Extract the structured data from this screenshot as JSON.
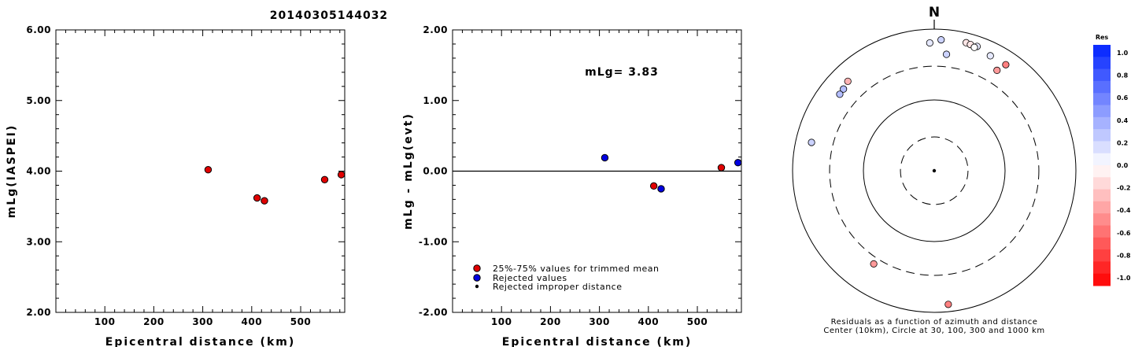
{
  "header": {
    "title": "20140305144032"
  },
  "chart_data": [
    {
      "type": "scatter",
      "title": "",
      "xlabel": "Epicentral distance (km)",
      "ylabel": "mLg(IASPEI)",
      "xlim": [
        0,
        590
      ],
      "ylim": [
        2.0,
        6.0
      ],
      "xticks": [
        100,
        200,
        300,
        400,
        500
      ],
      "xtick_labels": [
        "100",
        "200",
        "300",
        "400",
        "500"
      ],
      "yticks": [
        2.0,
        3.0,
        4.0,
        5.0,
        6.0
      ],
      "ytick_labels": [
        "2.00",
        "3.00",
        "4.00",
        "5.00",
        "6.00"
      ],
      "series": [
        {
          "color": "#e00000",
          "points": [
            {
              "x": 311,
              "y": 4.02
            },
            {
              "x": 411,
              "y": 3.62
            },
            {
              "x": 426,
              "y": 3.58
            },
            {
              "x": 549,
              "y": 3.88
            },
            {
              "x": 583,
              "y": 3.95
            }
          ]
        }
      ]
    },
    {
      "type": "scatter",
      "title": "",
      "xlabel": "Epicentral distance (km)",
      "ylabel": "mLg - mLg(evt)",
      "annotation": "mLg= 3.83",
      "xlim": [
        0,
        590
      ],
      "ylim": [
        -2.0,
        2.0
      ],
      "xticks": [
        100,
        200,
        300,
        400,
        500
      ],
      "xtick_labels": [
        "100",
        "200",
        "300",
        "400",
        "500"
      ],
      "yticks": [
        -2.0,
        -1.0,
        0.0,
        1.0,
        2.0
      ],
      "ytick_labels": [
        "-2.00",
        "-1.00",
        "0.00",
        "1.00",
        "2.00"
      ],
      "zero_line": true,
      "series": [
        {
          "name": "25%-75% values for trimmed mean",
          "color": "#e00000",
          "points": [
            {
              "x": 411,
              "y": -0.21
            },
            {
              "x": 549,
              "y": 0.05
            }
          ]
        },
        {
          "name": "Rejected values",
          "color": "#0000e0",
          "points": [
            {
              "x": 311,
              "y": 0.19
            },
            {
              "x": 426,
              "y": -0.25
            },
            {
              "x": 583,
              "y": 0.12
            }
          ]
        },
        {
          "name": "Rejected improper distance",
          "color": "#000000",
          "points": []
        }
      ]
    },
    {
      "type": "scatter",
      "subtype": "polar",
      "north_label": "N",
      "caption_lines": [
        "Residuals as a function of azimuth and distance",
        "Center (10km), Circle at 30, 100, 300 and 1000 km"
      ],
      "rings_km": [
        30,
        100,
        300,
        1000
      ],
      "points": [
        {
          "az": 3,
          "dist_km": 710,
          "res": 0.2
        },
        {
          "az": 14,
          "dist_km": 730,
          "res": -0.1
        },
        {
          "az": 16,
          "dist_km": 715,
          "res": -0.1
        },
        {
          "az": 19,
          "dist_km": 720,
          "res": 0.1
        },
        {
          "az": 18,
          "dist_km": 680,
          "res": 0.0
        },
        {
          "az": 26,
          "dist_km": 640,
          "res": 0.1
        },
        {
          "az": -2,
          "dist_km": 640,
          "res": 0.1
        },
        {
          "az": 34,
          "dist_km": 640,
          "res": -0.5
        },
        {
          "az": 6,
          "dist_km": 450,
          "res": 0.2
        },
        {
          "az": 32,
          "dist_km": 470,
          "res": -0.4
        },
        {
          "az": -44,
          "dist_km": 570,
          "res": -0.3
        },
        {
          "az": -48,
          "dist_km": 530,
          "res": 0.3
        },
        {
          "az": -51,
          "dist_km": 520,
          "res": 0.3
        },
        {
          "az": -77,
          "dist_km": 600,
          "res": 0.2
        },
        {
          "az": -147,
          "dist_km": 370,
          "res": -0.4
        },
        {
          "az": 174,
          "dist_km": 790,
          "res": -0.5
        }
      ],
      "colorbar": {
        "title": "Res",
        "labels": [
          "1.0",
          "0.8",
          "0.6",
          "0.4",
          "0.2",
          "0.0",
          "-0.2",
          "-0.4",
          "-0.6",
          "-0.8",
          "-1.0"
        ],
        "top_color": "#0022ff",
        "bottom_color": "#ff0000"
      }
    }
  ]
}
